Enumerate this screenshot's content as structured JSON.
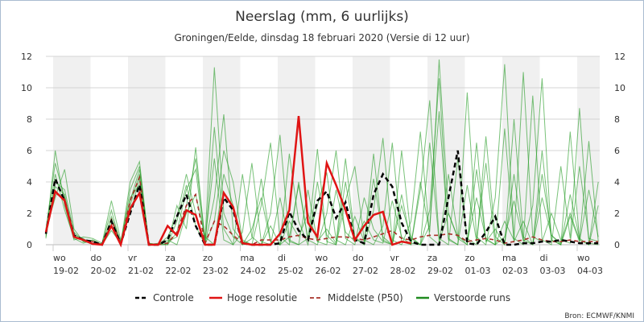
{
  "chart_data": {
    "type": "line",
    "title": "Neerslag (mm, 6 uurlijks)",
    "subtitle": "Groningen/Eelde, dinsdag 18 februari 2020 (Versie di 12 uur)",
    "source": "Bron: ECMWF/KNMI",
    "ylim": [
      0,
      12
    ],
    "yticks": [
      0,
      2,
      4,
      6,
      8,
      10,
      12
    ],
    "grid": true,
    "legend_position": "bottom",
    "step_hours": 6,
    "x_days": [
      {
        "day": "wo",
        "date": "19-02"
      },
      {
        "day": "do",
        "date": "20-02"
      },
      {
        "day": "vr",
        "date": "21-02"
      },
      {
        "day": "za",
        "date": "22-02"
      },
      {
        "day": "zo",
        "date": "23-02"
      },
      {
        "day": "ma",
        "date": "24-02"
      },
      {
        "day": "di",
        "date": "25-02"
      },
      {
        "day": "wo",
        "date": "26-02"
      },
      {
        "day": "do",
        "date": "27-02"
      },
      {
        "day": "vr",
        "date": "28-02"
      },
      {
        "day": "za",
        "date": "29-02"
      },
      {
        "day": "zo",
        "date": "01-03"
      },
      {
        "day": "ma",
        "date": "02-03"
      },
      {
        "day": "di",
        "date": "03-03"
      },
      {
        "day": "wo",
        "date": "04-03"
      }
    ],
    "legend": [
      {
        "label": "Controle",
        "color": "#000000",
        "style": "dashed"
      },
      {
        "label": "Hoge resolutie",
        "color": "#e01414",
        "style": "solid"
      },
      {
        "label": "Middelste (P50)",
        "color": "#a8322a",
        "style": "dashed"
      },
      {
        "label": "Verstoorde runs",
        "color": "#1f8a1f",
        "style": "solid"
      }
    ],
    "series": {
      "control": [
        0.7,
        4.2,
        2.8,
        0.6,
        0.3,
        0.2,
        0,
        1.5,
        0.05,
        2.0,
        3.8,
        0,
        0,
        0.3,
        1.8,
        3.2,
        1.2,
        0,
        0,
        3.0,
        2.2,
        0.1,
        0,
        0,
        0,
        0.1,
        2.1,
        0.9,
        0.3,
        2.8,
        3.4,
        1.7,
        2.7,
        0.3,
        0.1,
        3.2,
        4.5,
        3.7,
        1.4,
        0.2,
        0,
        0,
        0,
        3.0,
        6.0,
        0.1,
        0,
        0.8,
        1.8,
        0,
        0,
        0.1,
        0.1,
        0.2,
        0.2,
        0.3,
        0.2,
        0.1,
        0.1,
        0.1
      ],
      "high_resolution": [
        0.8,
        3.4,
        2.8,
        0.5,
        0.3,
        0.05,
        0,
        1.2,
        0,
        2.3,
        3.3,
        0,
        0,
        1.2,
        0.6,
        2.2,
        1.9,
        0,
        0,
        3.3,
        2.4,
        0.1,
        0,
        0,
        0,
        0.7,
        2.2,
        8.2,
        1.4,
        0.5,
        5.2,
        3.8,
        2.2,
        0.3,
        1.2,
        1.9,
        2.1,
        0,
        0.2,
        0.1
      ],
      "p50": [
        0.7,
        3.3,
        2.9,
        0.5,
        0.3,
        0.2,
        0,
        1.6,
        0.1,
        2.8,
        4.3,
        0,
        0,
        0.1,
        0.8,
        2.5,
        3.2,
        0.1,
        1.5,
        1.2,
        0.6,
        0.1,
        0,
        0.3,
        0.3,
        0.3,
        0.5,
        0.6,
        0.4,
        0.3,
        0.4,
        0.5,
        0.5,
        0.4,
        0.3,
        0.5,
        0.7,
        0.9,
        0.4,
        0.3,
        0.5,
        0.6,
        0.6,
        0.7,
        0.6,
        0.2,
        0.3,
        0.4,
        0.3,
        0.1,
        0.2,
        0.3,
        0.5,
        0.3,
        0.2,
        0.2,
        0.3,
        0.2,
        0.2,
        0.2
      ],
      "perturbed": [
        [
          1,
          5.2,
          3,
          0.5,
          0.3,
          0.2,
          0,
          1.8,
          0.2,
          2.5,
          4.5,
          0,
          0,
          0.2,
          0.5,
          2.5,
          5.5,
          0.3,
          11.3,
          2,
          0.5,
          0,
          1,
          3,
          0.2,
          0,
          1.5,
          0.5,
          2,
          0.2,
          0,
          3.5,
          0.8,
          0.2,
          1.5,
          0.3,
          0.1,
          2.8,
          0.5,
          0,
          4,
          0.8,
          11.8,
          2,
          0.5,
          0.2,
          3,
          0.4,
          0,
          1.5,
          0.3,
          11,
          0.5,
          0.2,
          2,
          0.3,
          0.1,
          5,
          0.4,
          0.2
        ],
        [
          0.6,
          4,
          3.5,
          0.8,
          0.2,
          0.1,
          0,
          1.2,
          0,
          3.5,
          5,
          0.1,
          0,
          0.5,
          1.8,
          4.5,
          2,
          0,
          3,
          8.3,
          1,
          0.2,
          0,
          2.5,
          6.5,
          0.5,
          0,
          4,
          0.3,
          0,
          2,
          6,
          0.4,
          0,
          3,
          1,
          0.2,
          0,
          6,
          0.5,
          0,
          2.2,
          10.6,
          0.3,
          0,
          9.7,
          0.5,
          0,
          3,
          11.5,
          0.4,
          0,
          2.5,
          10.6,
          0.3,
          0,
          1.8,
          0.2,
          3.5,
          0.5
        ],
        [
          0.4,
          6,
          2.5,
          0.3,
          0.5,
          0.4,
          0.1,
          2.8,
          0.3,
          2,
          4.2,
          0,
          0.1,
          0,
          2.5,
          1,
          6.2,
          0.2,
          5.5,
          0.3,
          0,
          4.5,
          0.5,
          0,
          2,
          7,
          0.3,
          0,
          3.5,
          0.2,
          1,
          0.1,
          5.5,
          0.4,
          0,
          2.2,
          6.8,
          0.3,
          0,
          1.5,
          7.2,
          0.5,
          0,
          4.5,
          0.6,
          0,
          6.5,
          0.2,
          1,
          0,
          8,
          0.5,
          0,
          3,
          0.6,
          0,
          7.2,
          0.3,
          0,
          2.5
        ],
        [
          0.9,
          3,
          4.8,
          1,
          0.2,
          0.3,
          0,
          0.9,
          0.1,
          4,
          5.3,
          0,
          0,
          0,
          0.8,
          3.5,
          4.8,
          0,
          1.5,
          6,
          4,
          0.3,
          0,
          0,
          1.2,
          0,
          5.8,
          1.5,
          0,
          4,
          0.6,
          0,
          2.8,
          5,
          0.3,
          0,
          1.2,
          6.5,
          0.2,
          0,
          3.5,
          9.2,
          0.4,
          0,
          5.5,
          0.4,
          0,
          6.9,
          0.5,
          0,
          4.5,
          0.2,
          9.5,
          0.3,
          0,
          5,
          0.4,
          8.7,
          0.1,
          0
        ],
        [
          0.7,
          4.5,
          2.2,
          0.4,
          0.1,
          0.3,
          0,
          1.5,
          0.2,
          3,
          3.8,
          0,
          0,
          0.3,
          0,
          2,
          3.2,
          0.5,
          0,
          4.5,
          2.5,
          0,
          0.4,
          4.2,
          0.2,
          0,
          0.5,
          3.8,
          0.3,
          6.1,
          0.2,
          0,
          4,
          0.5,
          0,
          5.8,
          0.3,
          0,
          2.5,
          0.4,
          0,
          6.5,
          0.2,
          2,
          0.4,
          0,
          4.8,
          0.3,
          0,
          7.4,
          0.2,
          1.5,
          0,
          6,
          0.3,
          0,
          3.2,
          0.4,
          0,
          4
        ],
        [
          0.5,
          3.7,
          3.2,
          0.6,
          0.4,
          0,
          0.1,
          2.2,
          0,
          2.8,
          4.8,
          0.1,
          0,
          0,
          1.5,
          3.8,
          1.2,
          0,
          7.5,
          1,
          0,
          0.8,
          5.2,
          0.2,
          0,
          3,
          0.2,
          0,
          0.4,
          2.5,
          4.6,
          0.3,
          0,
          1.8,
          0.2,
          4.2,
          0.5,
          0,
          3.2,
          0.1,
          0,
          1.2,
          8.5,
          0.4,
          0,
          3.8,
          0.2,
          5.2,
          0,
          0.5,
          2.8,
          0.3,
          0,
          4.5,
          0.6,
          0.1,
          2,
          0.3,
          6.6,
          0.2
        ]
      ]
    }
  }
}
